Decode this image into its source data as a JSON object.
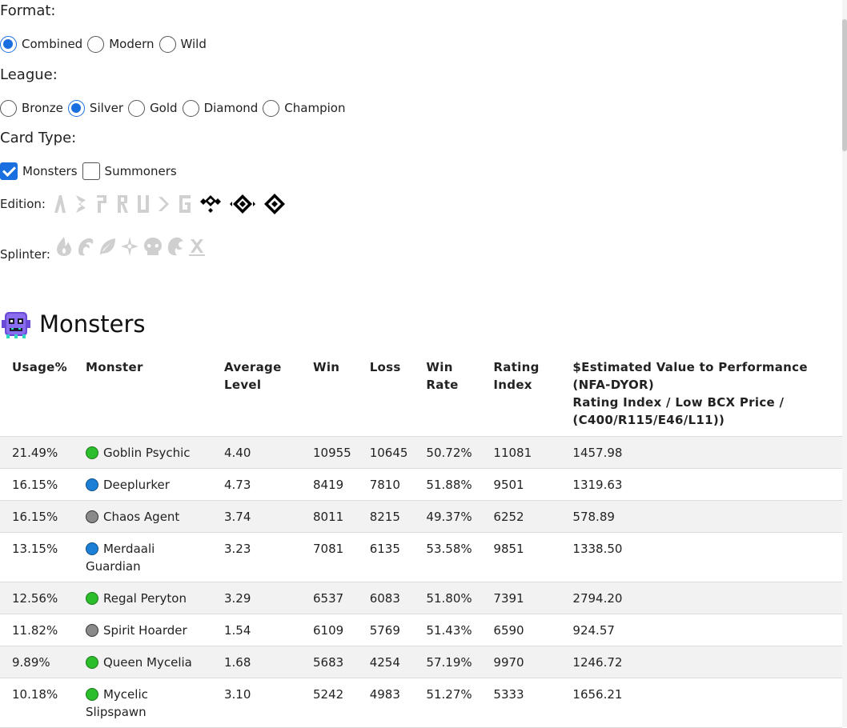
{
  "filters": {
    "format": {
      "label": "Format:",
      "options": [
        {
          "label": "Combined",
          "selected": true
        },
        {
          "label": "Modern",
          "selected": false
        },
        {
          "label": "Wild",
          "selected": false
        }
      ]
    },
    "league": {
      "label": "League:",
      "options": [
        {
          "label": "Bronze",
          "selected": false
        },
        {
          "label": "Silver",
          "selected": true
        },
        {
          "label": "Gold",
          "selected": false
        },
        {
          "label": "Diamond",
          "selected": false
        },
        {
          "label": "Champion",
          "selected": false
        }
      ]
    },
    "card_type": {
      "label": "Card Type:",
      "options": [
        {
          "label": "Monsters",
          "checked": true
        },
        {
          "label": "Summoners",
          "checked": false
        }
      ]
    },
    "edition": {
      "label": "Edition:",
      "icons": [
        "alpha-icon",
        "beta-icon",
        "promo-icon",
        "reward-icon",
        "untamed-icon",
        "dice-icon",
        "gladius-icon",
        "chaos-legion-icon",
        "riftwatchers-icon",
        "rebellion-icon"
      ],
      "active_color": "#000000",
      "inactive_color": "#d0d0d0"
    },
    "splinter": {
      "label": "Splinter:",
      "icons": [
        "fire-icon",
        "water-icon",
        "earth-icon",
        "life-icon",
        "death-icon",
        "dragon-icon",
        "neutral-icon"
      ]
    }
  },
  "monsters_section": {
    "title": "Monsters",
    "columns": {
      "usage": "Usage%",
      "monster": "Monster",
      "level": "Average Level",
      "win": "Win",
      "loss": "Loss",
      "winrate": "Win Rate",
      "rating": "Rating Index",
      "value_line1": "$Estimated Value to Performance (NFA-DYOR)",
      "value_line2": "Rating Index / Low BCX Price / (C400/R115/E46/L11))"
    },
    "rows": [
      {
        "usage": "21.49%",
        "element": "green",
        "name": "Goblin Psychic",
        "level": "4.40",
        "win": "10955",
        "loss": "10645",
        "winrate": "50.72%",
        "rating": "11081",
        "value": "1457.98"
      },
      {
        "usage": "16.15%",
        "element": "blue",
        "name": "Deeplurker",
        "level": "4.73",
        "win": "8419",
        "loss": "7810",
        "winrate": "51.88%",
        "rating": "9501",
        "value": "1319.63"
      },
      {
        "usage": "16.15%",
        "element": "gray",
        "name": "Chaos Agent",
        "level": "3.74",
        "win": "8011",
        "loss": "8215",
        "winrate": "49.37%",
        "rating": "6252",
        "value": "578.89"
      },
      {
        "usage": "13.15%",
        "element": "blue",
        "name": "Merdaali Guardian",
        "level": "3.23",
        "win": "7081",
        "loss": "6135",
        "winrate": "53.58%",
        "rating": "9851",
        "value": "1338.50"
      },
      {
        "usage": "12.56%",
        "element": "green",
        "name": "Regal Peryton",
        "level": "3.29",
        "win": "6537",
        "loss": "6083",
        "winrate": "51.80%",
        "rating": "7391",
        "value": "2794.20"
      },
      {
        "usage": "11.82%",
        "element": "gray",
        "name": "Spirit Hoarder",
        "level": "1.54",
        "win": "6109",
        "loss": "5769",
        "winrate": "51.43%",
        "rating": "6590",
        "value": "924.57"
      },
      {
        "usage": "9.89%",
        "element": "green",
        "name": "Queen Mycelia",
        "level": "1.68",
        "win": "5683",
        "loss": "4254",
        "winrate": "57.19%",
        "rating": "9970",
        "value": "1246.72"
      },
      {
        "usage": "10.18%",
        "element": "green",
        "name": "Mycelic Slipspawn",
        "level": "3.10",
        "win": "5242",
        "loss": "4983",
        "winrate": "51.27%",
        "rating": "5333",
        "value": "1656.21"
      }
    ]
  }
}
